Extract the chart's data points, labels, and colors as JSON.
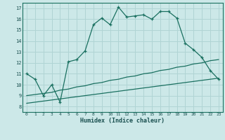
{
  "xlabel": "Humidex (Indice chaleur)",
  "xlim": [
    -0.5,
    23.5
  ],
  "ylim": [
    7.5,
    17.5
  ],
  "xticks": [
    0,
    1,
    2,
    3,
    4,
    5,
    6,
    7,
    8,
    9,
    10,
    11,
    12,
    13,
    14,
    15,
    16,
    17,
    18,
    19,
    20,
    21,
    22,
    23
  ],
  "yticks": [
    8,
    9,
    10,
    11,
    12,
    13,
    14,
    15,
    16,
    17
  ],
  "bg_color": "#cce8e8",
  "line_color": "#1a7060",
  "grid_color": "#b0d4d4",
  "line1_x": [
    0,
    1,
    2,
    3,
    4,
    5,
    6,
    7,
    8,
    9,
    10,
    11,
    12,
    13,
    14,
    15,
    16,
    17,
    18,
    19,
    20,
    21,
    22,
    23
  ],
  "line1_y": [
    11.0,
    10.5,
    9.0,
    10.0,
    8.4,
    12.1,
    12.3,
    13.1,
    15.5,
    16.1,
    15.5,
    17.1,
    16.2,
    16.3,
    16.4,
    16.0,
    16.7,
    16.7,
    16.1,
    13.8,
    13.2,
    12.5,
    11.3,
    10.5
  ],
  "line2_x": [
    0,
    1,
    2,
    3,
    4,
    5,
    6,
    7,
    8,
    9,
    10,
    11,
    12,
    13,
    14,
    15,
    16,
    17,
    18,
    19,
    20,
    21,
    22,
    23
  ],
  "line2_y": [
    9.0,
    9.1,
    9.2,
    9.3,
    9.5,
    9.6,
    9.8,
    9.9,
    10.1,
    10.2,
    10.4,
    10.5,
    10.7,
    10.8,
    11.0,
    11.1,
    11.3,
    11.4,
    11.6,
    11.7,
    11.9,
    12.0,
    12.2,
    12.3
  ],
  "line3_x": [
    0,
    1,
    2,
    3,
    4,
    5,
    6,
    7,
    8,
    9,
    10,
    11,
    12,
    13,
    14,
    15,
    16,
    17,
    18,
    19,
    20,
    21,
    22,
    23
  ],
  "line3_y": [
    8.3,
    8.4,
    8.5,
    8.6,
    8.7,
    8.8,
    8.9,
    9.0,
    9.1,
    9.2,
    9.3,
    9.4,
    9.5,
    9.6,
    9.7,
    9.8,
    9.9,
    10.0,
    10.1,
    10.2,
    10.3,
    10.4,
    10.5,
    10.6
  ]
}
